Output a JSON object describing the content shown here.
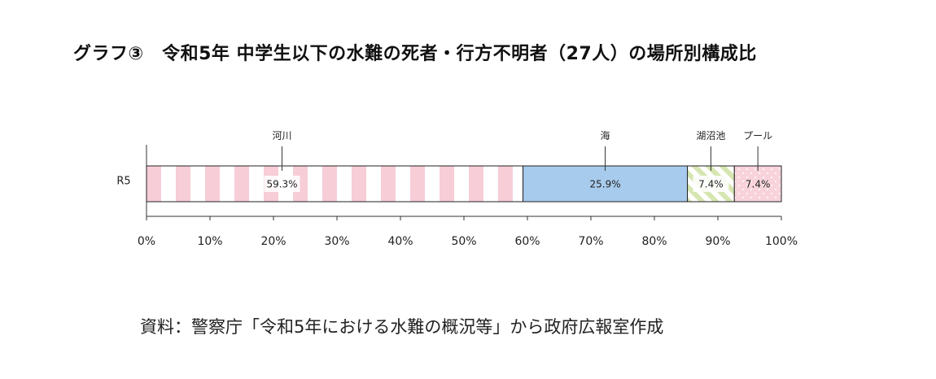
{
  "title": "グラフ③　令和5年  中学生以下の水難の死者・行方不明者（27人）の場所別構成比",
  "source": "資料：警察庁「令和5年における水難の概況等」から政府広報室作成",
  "chart_data": {
    "type": "bar",
    "orientation": "horizontal",
    "stacked": true,
    "categories": [
      "R5"
    ],
    "series": [
      {
        "name": "河川",
        "values": [
          59.3
        ],
        "label": "59.3%",
        "color": "#f7cdd7",
        "pattern": "vertical-stripes"
      },
      {
        "name": "海",
        "values": [
          25.9
        ],
        "label": "25.9%",
        "color": "#a7cbec",
        "pattern": "solid"
      },
      {
        "name": "湖沼池",
        "values": [
          7.4
        ],
        "label": "7.4%",
        "color": "#d6e6b0",
        "pattern": "diagonal-stripes"
      },
      {
        "name": "プール",
        "values": [
          7.4
        ],
        "label": "7.4%",
        "color": "#f8d3dc",
        "pattern": "dots"
      }
    ],
    "xlim": [
      0,
      100
    ],
    "xticks": [
      "0%",
      "10%",
      "20%",
      "30%",
      "40%",
      "50%",
      "60%",
      "70%",
      "80%",
      "90%",
      "100%"
    ],
    "xlabel": "",
    "ylabel": "",
    "grid": false,
    "legend": "callout-labels-above"
  }
}
